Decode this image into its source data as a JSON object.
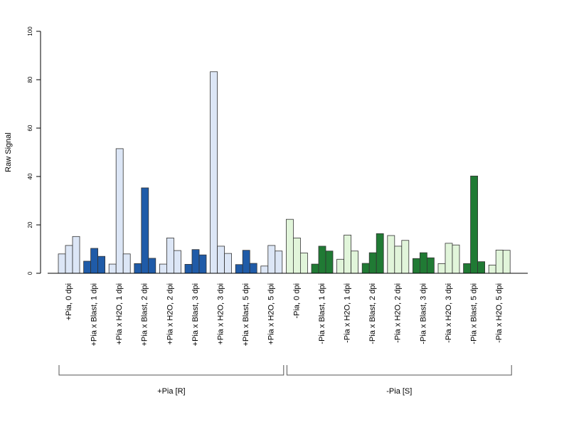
{
  "chart_data": {
    "type": "bar",
    "title": "",
    "xlabel": "",
    "ylabel": "Raw Signal",
    "ylim": [
      0,
      100
    ],
    "yticks": [
      0,
      20,
      40,
      60,
      80,
      100
    ],
    "grid": false,
    "legend": "none",
    "colors": {
      "pia_plus_light": "#dce6f6",
      "pia_plus_dark": "#1f5ba8",
      "pia_minus_light": "#e1f5da",
      "pia_minus_dark": "#207a34",
      "outline": "#333333"
    },
    "categories": [
      {
        "label": "+Pia, 0 dpi",
        "shade": "pia_plus_light",
        "values": [
          8,
          11.5,
          15.2
        ]
      },
      {
        "label": "+Pia x Blast, 1 dpi",
        "shade": "pia_plus_dark",
        "values": [
          5,
          10.3,
          7
        ]
      },
      {
        "label": "+Pia x H2O, 1 dpi",
        "shade": "pia_plus_light",
        "values": [
          3.8,
          51.5,
          8
        ]
      },
      {
        "label": "+Pia x Blast, 2 dpi",
        "shade": "pia_plus_dark",
        "values": [
          4,
          35.3,
          6.2
        ]
      },
      {
        "label": "+Pia x H2O, 2 dpi",
        "shade": "pia_plus_light",
        "values": [
          3.8,
          14.6,
          9.4
        ]
      },
      {
        "label": "+Pia x Blast, 3 dpi",
        "shade": "pia_plus_dark",
        "values": [
          3.7,
          9.8,
          7.6
        ]
      },
      {
        "label": "+Pia x H2O, 3 dpi",
        "shade": "pia_plus_light",
        "values": [
          83.3,
          11.2,
          8.2
        ]
      },
      {
        "label": "+Pia x Blast, 5 dpi",
        "shade": "pia_plus_dark",
        "values": [
          3.6,
          9.5,
          4.1
        ]
      },
      {
        "label": "+Pia x H2O, 5 dpi",
        "shade": "pia_plus_light",
        "values": [
          3,
          11.5,
          9.2
        ]
      },
      {
        "label": "-Pia, 0 dpi",
        "shade": "pia_minus_light",
        "values": [
          22.3,
          14.6,
          8.4
        ]
      },
      {
        "label": "-Pia x Blast, 1 dpi",
        "shade": "pia_minus_dark",
        "values": [
          3.8,
          11.2,
          9.2
        ]
      },
      {
        "label": "-Pia x H2O, 1 dpi",
        "shade": "pia_minus_light",
        "values": [
          5.8,
          15.8,
          9.2
        ]
      },
      {
        "label": "-Pia x Blast, 2 dpi",
        "shade": "pia_minus_dark",
        "values": [
          4.1,
          8.5,
          16.4
        ]
      },
      {
        "label": "-Pia x H2O, 2 dpi",
        "shade": "pia_minus_light",
        "values": [
          15.6,
          11.2,
          13.6
        ]
      },
      {
        "label": "-Pia x Blast, 3 dpi",
        "shade": "pia_minus_dark",
        "values": [
          6.1,
          8.5,
          6.4
        ]
      },
      {
        "label": "-Pia x H2O, 3 dpi",
        "shade": "pia_minus_light",
        "values": [
          4,
          12.4,
          11.7
        ]
      },
      {
        "label": "-Pia x Blast, 5 dpi",
        "shade": "pia_minus_dark",
        "values": [
          4,
          40.2,
          4.8
        ]
      },
      {
        "label": "-Pia x H2O, 5 dpi",
        "shade": "pia_minus_light",
        "values": [
          3.4,
          9.6,
          9.5
        ]
      }
    ],
    "groups": [
      {
        "label": "+Pia [R]",
        "from": 0,
        "to": 8
      },
      {
        "label": "-Pia [S]",
        "from": 9,
        "to": 17
      }
    ]
  }
}
